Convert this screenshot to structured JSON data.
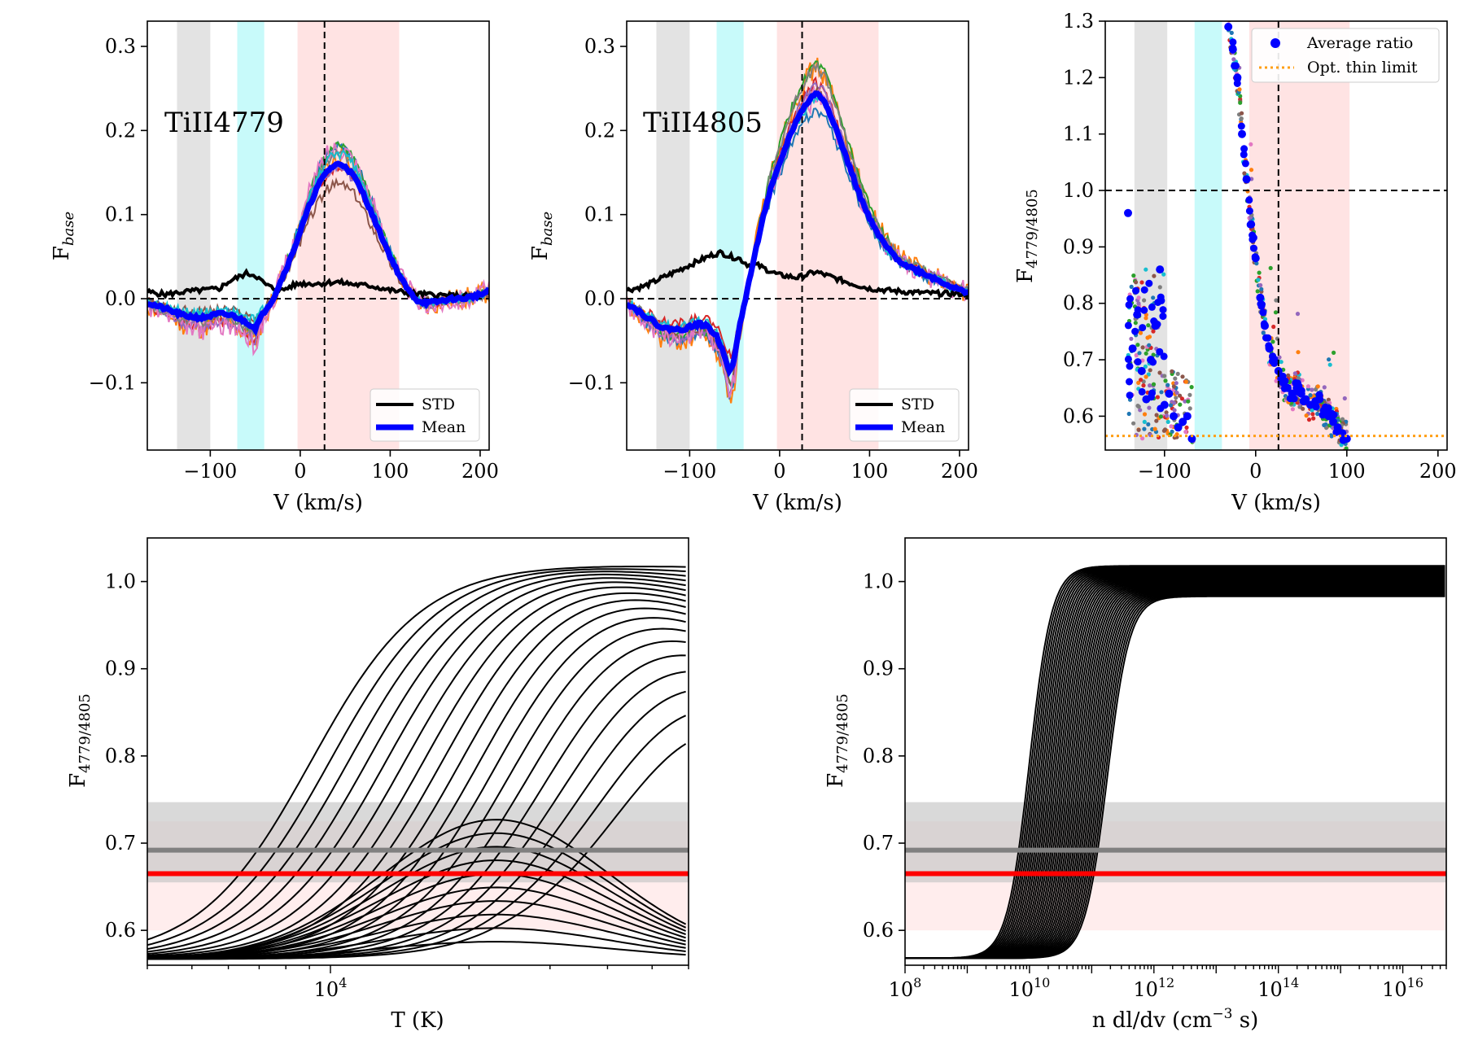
{
  "chart_data": [
    {
      "type": "line",
      "title": "TiII4779",
      "xlabel": "V (km/s)",
      "ylabel": "F_base",
      "xlim": [
        -170,
        210
      ],
      "ylim": [
        -0.18,
        0.33
      ],
      "xticks": [
        -100,
        0,
        100,
        200
      ],
      "yticks": [
        -0.1,
        0.0,
        0.1,
        0.2,
        0.3
      ],
      "vline": 27,
      "hline": 0,
      "bands": [
        {
          "from": -137,
          "to": -100,
          "color": "#e3e3e3"
        },
        {
          "from": -70,
          "to": -40,
          "color": "#c8fafa"
        },
        {
          "from": -3,
          "to": 110,
          "color": "#ffe3e3"
        }
      ],
      "legend": [
        "STD",
        "Mean"
      ],
      "series": [
        {
          "name": "Mean",
          "color": "#0000ff",
          "x": [
            -170,
            -150,
            -130,
            -110,
            -90,
            -75,
            -60,
            -50,
            -40,
            -30,
            -20,
            -10,
            0,
            10,
            20,
            30,
            40,
            50,
            60,
            70,
            80,
            90,
            100,
            110,
            120,
            130,
            140,
            150,
            160,
            170,
            180,
            190,
            200,
            210
          ],
          "y": [
            -0.005,
            -0.012,
            -0.02,
            -0.023,
            -0.018,
            -0.02,
            -0.028,
            -0.035,
            -0.015,
            0.0,
            0.025,
            0.05,
            0.08,
            0.11,
            0.135,
            0.152,
            0.16,
            0.158,
            0.145,
            0.125,
            0.1,
            0.075,
            0.05,
            0.028,
            0.01,
            -0.002,
            -0.005,
            -0.004,
            -0.002,
            0.0,
            0.0,
            0.002,
            0.005,
            0.008
          ]
        },
        {
          "name": "STD",
          "color": "#000000",
          "x": [
            -170,
            -150,
            -130,
            -110,
            -90,
            -80,
            -70,
            -60,
            -50,
            -40,
            -30,
            -20,
            -10,
            0,
            20,
            40,
            60,
            80,
            100,
            120,
            140,
            160,
            180,
            200,
            210
          ],
          "y": [
            0.008,
            0.005,
            0.008,
            0.01,
            0.012,
            0.02,
            0.025,
            0.03,
            0.028,
            0.018,
            0.012,
            0.01,
            0.015,
            0.018,
            0.018,
            0.02,
            0.017,
            0.015,
            0.01,
            0.007,
            0.005,
            0.004,
            0.003,
            0.004,
            0.005
          ]
        }
      ]
    },
    {
      "type": "line",
      "title": "TiII4805",
      "xlabel": "V (km/s)",
      "ylabel": "F_base",
      "xlim": [
        -170,
        210
      ],
      "ylim": [
        -0.18,
        0.33
      ],
      "xticks": [
        -100,
        0,
        100,
        200
      ],
      "yticks": [
        -0.1,
        0.0,
        0.1,
        0.2,
        0.3
      ],
      "vline": 25,
      "hline": 0,
      "bands": [
        {
          "from": -137,
          "to": -100,
          "color": "#e3e3e3"
        },
        {
          "from": -70,
          "to": -40,
          "color": "#c8fafa"
        },
        {
          "from": -3,
          "to": 110,
          "color": "#ffe3e3"
        }
      ],
      "legend": [
        "STD",
        "Mean"
      ],
      "series": [
        {
          "name": "Mean",
          "color": "#0000ff",
          "x": [
            -170,
            -150,
            -130,
            -110,
            -90,
            -80,
            -70,
            -62,
            -55,
            -50,
            -45,
            -38,
            -30,
            -20,
            -10,
            0,
            10,
            20,
            30,
            40,
            50,
            60,
            70,
            80,
            90,
            100,
            110,
            120,
            130,
            140,
            150,
            160,
            170,
            180,
            190,
            200,
            210
          ],
          "y": [
            -0.005,
            -0.02,
            -0.035,
            -0.037,
            -0.03,
            -0.033,
            -0.045,
            -0.065,
            -0.088,
            -0.07,
            -0.035,
            0.0,
            0.04,
            0.09,
            0.13,
            0.16,
            0.19,
            0.215,
            0.232,
            0.245,
            0.235,
            0.21,
            0.18,
            0.15,
            0.12,
            0.095,
            0.075,
            0.06,
            0.048,
            0.04,
            0.035,
            0.03,
            0.025,
            0.02,
            0.015,
            0.01,
            0.008
          ]
        },
        {
          "name": "STD",
          "color": "#000000",
          "x": [
            -170,
            -150,
            -130,
            -110,
            -90,
            -75,
            -65,
            -55,
            -45,
            -35,
            -25,
            -15,
            -5,
            0,
            20,
            40,
            60,
            80,
            100,
            120,
            140,
            160,
            180,
            200,
            210
          ],
          "y": [
            0.01,
            0.015,
            0.025,
            0.035,
            0.045,
            0.052,
            0.055,
            0.05,
            0.048,
            0.04,
            0.04,
            0.035,
            0.03,
            0.028,
            0.025,
            0.032,
            0.025,
            0.018,
            0.012,
            0.01,
            0.008,
            0.007,
            0.006,
            0.006,
            0.005
          ]
        }
      ]
    },
    {
      "type": "scatter",
      "xlabel": "V (km/s)",
      "ylabel": "F_4779/4805",
      "xlim": [
        -165,
        210
      ],
      "ylim": [
        0.54,
        1.3
      ],
      "xticks": [
        -100,
        0,
        100,
        200
      ],
      "yticks": [
        0.6,
        0.7,
        0.8,
        0.9,
        1.0,
        1.1,
        1.2,
        1.3
      ],
      "vline": 25,
      "hline": 1.0,
      "opt_thin_limit": 0.565,
      "bands": [
        {
          "from": -133,
          "to": -97,
          "color": "#e3e3e3"
        },
        {
          "from": -67,
          "to": -37,
          "color": "#c8fafa"
        },
        {
          "from": -7,
          "to": 103,
          "color": "#ffe3e3"
        }
      ],
      "legend": [
        "Average ratio",
        "Opt. thin limit"
      ],
      "average_ratio": {
        "x": [
          -140,
          -135,
          -130,
          -125,
          -120,
          -115,
          -110,
          -105,
          -100,
          -95,
          -90,
          -85,
          -80,
          -75,
          -70,
          -30,
          -25,
          -20,
          -15,
          -10,
          -5,
          0,
          5,
          10,
          15,
          20,
          25,
          30,
          35,
          40,
          45,
          50,
          55,
          60,
          65,
          70,
          75,
          80,
          85,
          90,
          95,
          100
        ],
        "y": [
          0.96,
          0.72,
          0.78,
          0.68,
          0.63,
          0.7,
          0.76,
          0.86,
          0.62,
          0.64,
          0.6,
          0.58,
          0.59,
          0.6,
          0.56,
          1.29,
          1.25,
          1.2,
          1.1,
          1.02,
          0.94,
          0.88,
          0.81,
          0.76,
          0.72,
          0.7,
          0.68,
          0.66,
          0.65,
          0.64,
          0.65,
          0.64,
          0.63,
          0.62,
          0.62,
          0.63,
          0.61,
          0.6,
          0.59,
          0.58,
          0.57,
          0.56
        ]
      }
    },
    {
      "type": "line",
      "xlabel": "T (K)",
      "ylabel": "F_4779/4805",
      "xscale": "log",
      "xlim": [
        4000,
        60000
      ],
      "ylim": [
        0.56,
        1.05
      ],
      "xticks": [
        "10^4"
      ],
      "yticks": [
        0.6,
        0.7,
        0.8,
        0.9,
        1.0
      ],
      "hlines": [
        {
          "y": 0.692,
          "color": "#808080"
        },
        {
          "y": 0.665,
          "color": "#ff0000"
        }
      ],
      "bands": [
        {
          "from": 0.6,
          "to": 0.725,
          "color": "#ffe3e3"
        },
        {
          "from": 0.655,
          "to": 0.747,
          "color": "#c4c4c4"
        }
      ],
      "curves": 28
    },
    {
      "type": "line",
      "xlabel": "n dl/dv (cm^-3 s)",
      "ylabel": "F_4779/4805",
      "xscale": "log",
      "xlim": [
        100000000,
        5e+16
      ],
      "ylim": [
        0.56,
        1.05
      ],
      "xticks": [
        "10^8",
        "10^10",
        "10^12",
        "10^14",
        "10^16"
      ],
      "yticks": [
        0.6,
        0.7,
        0.8,
        0.9,
        1.0
      ],
      "hlines": [
        {
          "y": 0.692,
          "color": "#808080"
        },
        {
          "y": 0.665,
          "color": "#ff0000"
        }
      ],
      "bands": [
        {
          "from": 0.6,
          "to": 0.725,
          "color": "#ffe3e3"
        },
        {
          "from": 0.655,
          "to": 0.747,
          "color": "#c4c4c4"
        }
      ],
      "curves": 40
    }
  ],
  "legend_labels": {
    "std": "STD",
    "mean": "Mean",
    "average_ratio": "Average ratio",
    "opt_thin": "Opt. thin limit"
  },
  "labels": {
    "title1": "TiII4779",
    "title2": "TiII4805",
    "xlabel_v": "V (km/s)",
    "xlabel_t": "T (K)",
    "xlabel_n_pre": "n dl/dv (cm",
    "xlabel_n_sup": "−3",
    "xlabel_n_post": " s)",
    "ylabel_fbase": "F",
    "ylabel_fbase_sub": "base",
    "ylabel_ratio": "F",
    "ylabel_ratio_sub": "4779/4805"
  }
}
